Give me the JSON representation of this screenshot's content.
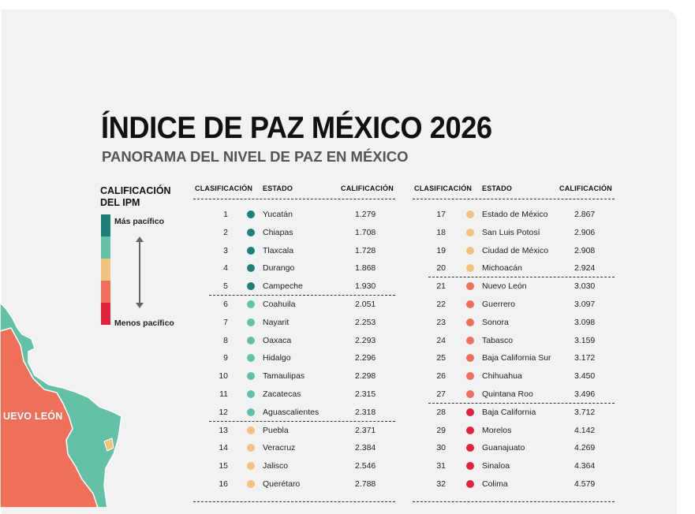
{
  "header": {
    "title": "ÍNDICE DE PAZ MÉXICO 2026",
    "subtitle": "PANORAMA DEL NIVEL DE PAZ EN MÉXICO"
  },
  "legend": {
    "title": "CALIFICACIÓN DEL IPM",
    "top_label": "Más pacífico",
    "bottom_label": "Menos pacífico",
    "colors": [
      "#1e7f78",
      "#63c1a8",
      "#f5c27e",
      "#ee6f5a",
      "#e0233a"
    ]
  },
  "map": {
    "label": "UEVO LEÓN"
  },
  "columns": {
    "rank": "CLASIFICACIÓN",
    "state": "ESTADO",
    "score": "CALIFICACIÓN"
  },
  "table_left": [
    {
      "rank": "1",
      "state": "Yucatán",
      "score": "1.279",
      "color": "#1e7f78"
    },
    {
      "rank": "2",
      "state": "Chiapas",
      "score": "1.708",
      "color": "#1e7f78"
    },
    {
      "rank": "3",
      "state": "Tlaxcala",
      "score": "1.728",
      "color": "#1e7f78"
    },
    {
      "rank": "4",
      "state": "Durango",
      "score": "1.868",
      "color": "#1e7f78"
    },
    {
      "rank": "5",
      "state": "Campeche",
      "score": "1.930",
      "color": "#1e7f78"
    },
    {
      "rank": "6",
      "state": "Coahuila",
      "score": "2.051",
      "color": "#63c1a8"
    },
    {
      "rank": "7",
      "state": "Nayarit",
      "score": "2.253",
      "color": "#63c1a8"
    },
    {
      "rank": "8",
      "state": "Oaxaca",
      "score": "2.293",
      "color": "#63c1a8"
    },
    {
      "rank": "9",
      "state": "Hidalgo",
      "score": "2.296",
      "color": "#63c1a8"
    },
    {
      "rank": "10",
      "state": "Tamaulipas",
      "score": "2.298",
      "color": "#63c1a8"
    },
    {
      "rank": "11",
      "state": "Zacatecas",
      "score": "2.315",
      "color": "#63c1a8"
    },
    {
      "rank": "12",
      "state": "Aguascalientes",
      "score": "2.318",
      "color": "#63c1a8"
    },
    {
      "rank": "13",
      "state": "Puebla",
      "score": "2.371",
      "color": "#f5c27e"
    },
    {
      "rank": "14",
      "state": "Veracruz",
      "score": "2.384",
      "color": "#f5c27e"
    },
    {
      "rank": "15",
      "state": "Jalisco",
      "score": "2.546",
      "color": "#f5c27e"
    },
    {
      "rank": "16",
      "state": "Querétaro",
      "score": "2.788",
      "color": "#f5c27e"
    }
  ],
  "table_right": [
    {
      "rank": "17",
      "state": "Estado de México",
      "score": "2.867",
      "color": "#f5c27e"
    },
    {
      "rank": "18",
      "state": "San Luis Potosí",
      "score": "2.906",
      "color": "#f5c27e"
    },
    {
      "rank": "19",
      "state": "Ciudad de México",
      "score": "2.908",
      "color": "#f5c27e"
    },
    {
      "rank": "20",
      "state": "Michoacán",
      "score": "2.924",
      "color": "#f5c27e"
    },
    {
      "rank": "21",
      "state": "Nuevo León",
      "score": "3.030",
      "color": "#ee6f5a"
    },
    {
      "rank": "22",
      "state": "Guerrero",
      "score": "3.097",
      "color": "#ee6f5a"
    },
    {
      "rank": "23",
      "state": "Sonora",
      "score": "3.098",
      "color": "#ee6f5a"
    },
    {
      "rank": "24",
      "state": "Tabasco",
      "score": "3.159",
      "color": "#ee6f5a"
    },
    {
      "rank": "25",
      "state": "Baja California Sur",
      "score": "3.172",
      "color": "#ee6f5a"
    },
    {
      "rank": "26",
      "state": "Chihuahua",
      "score": "3.450",
      "color": "#ee6f5a"
    },
    {
      "rank": "27",
      "state": "Quintana Roo",
      "score": "3.496",
      "color": "#ee6f5a"
    },
    {
      "rank": "28",
      "state": "Baja California",
      "score": "3.712",
      "color": "#e0233a"
    },
    {
      "rank": "29",
      "state": "Morelos",
      "score": "4.142",
      "color": "#e0233a"
    },
    {
      "rank": "30",
      "state": "Guanajuato",
      "score": "4.269",
      "color": "#e0233a"
    },
    {
      "rank": "31",
      "state": "Sinaloa",
      "score": "4.364",
      "color": "#e0233a"
    },
    {
      "rank": "32",
      "state": "Colima",
      "score": "4.579",
      "color": "#e0233a"
    }
  ]
}
